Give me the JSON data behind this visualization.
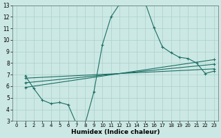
{
  "xlabel": "Humidex (Indice chaleur)",
  "xlim": [
    -0.5,
    23.5
  ],
  "ylim": [
    3,
    13
  ],
  "xticks": [
    0,
    1,
    2,
    3,
    4,
    5,
    6,
    7,
    8,
    9,
    10,
    11,
    12,
    13,
    14,
    15,
    16,
    17,
    18,
    19,
    20,
    21,
    22,
    23
  ],
  "yticks": [
    3,
    4,
    5,
    6,
    7,
    8,
    9,
    10,
    11,
    12,
    13
  ],
  "bg_color": "#cce8e4",
  "line_color": "#1a6e64",
  "grid_color": "#aacfcb",
  "line1": {
    "x": [
      1,
      2,
      3,
      4,
      5,
      6,
      7,
      8,
      9,
      10,
      11,
      12,
      13,
      14,
      15,
      16,
      17,
      18,
      19,
      20,
      21,
      22,
      23
    ],
    "y": [
      6.9,
      5.8,
      4.8,
      4.5,
      4.6,
      4.4,
      2.7,
      2.8,
      5.5,
      9.6,
      12.0,
      13.1,
      13.2,
      13.2,
      13.2,
      11.1,
      9.4,
      8.9,
      8.5,
      8.4,
      8.0,
      7.1,
      7.3
    ]
  },
  "line2": {
    "x": [
      1,
      23
    ],
    "y": [
      6.7,
      7.5
    ]
  },
  "line3": {
    "x": [
      1,
      23
    ],
    "y": [
      6.3,
      7.9
    ]
  },
  "line4": {
    "x": [
      1,
      23
    ],
    "y": [
      5.9,
      8.3
    ]
  }
}
